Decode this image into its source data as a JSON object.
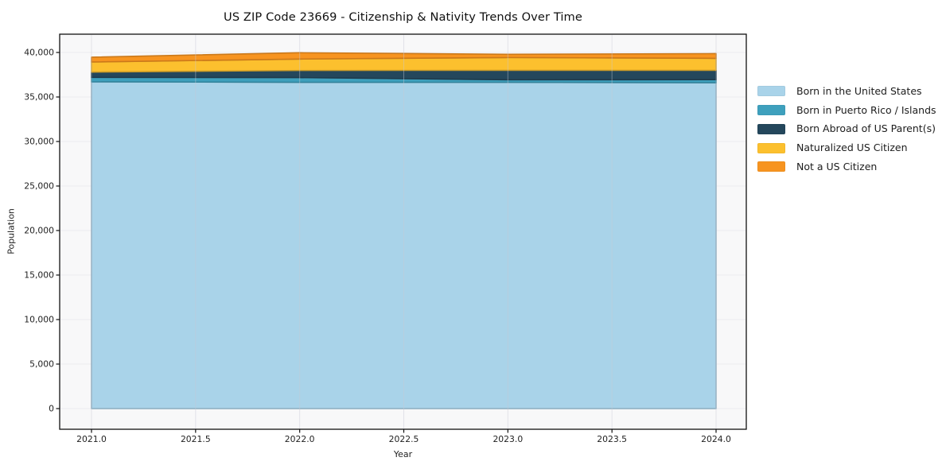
{
  "chart_data": {
    "type": "area",
    "stacked": true,
    "title": "US ZIP Code 23669 - Citizenship & Nativity Trends Over Time",
    "xlabel": "Year",
    "ylabel": "Population",
    "x": [
      2021,
      2022,
      2023,
      2024
    ],
    "series": [
      {
        "name": "Born in the United States",
        "color": "#a9d3e9",
        "values": [
          36700,
          36650,
          36650,
          36600
        ]
      },
      {
        "name": "Born in Puerto Rico / Islands",
        "color": "#3ea0bd",
        "values": [
          500,
          530,
          280,
          350
        ]
      },
      {
        "name": "Born Abroad of US Parent(s)",
        "color": "#24475c",
        "values": [
          600,
          800,
          1070,
          1050
        ]
      },
      {
        "name": "Naturalized US Citizen",
        "color": "#fcc02e",
        "values": [
          1130,
          1280,
          1430,
          1340
        ]
      },
      {
        "name": "Not a US Citizen",
        "color": "#f79420",
        "values": [
          540,
          710,
          360,
          530
        ]
      }
    ],
    "xticks": [
      {
        "value": 2021.0,
        "label": "2021.0"
      },
      {
        "value": 2021.5,
        "label": "2021.5"
      },
      {
        "value": 2022.0,
        "label": "2022.0"
      },
      {
        "value": 2022.5,
        "label": "2022.5"
      },
      {
        "value": 2023.0,
        "label": "2023.0"
      },
      {
        "value": 2023.5,
        "label": "2023.5"
      },
      {
        "value": 2024.0,
        "label": "2024.0"
      }
    ],
    "yticks": [
      {
        "value": 0,
        "label": "0"
      },
      {
        "value": 5000,
        "label": "5,000"
      },
      {
        "value": 10000,
        "label": "10,000"
      },
      {
        "value": 15000,
        "label": "15,000"
      },
      {
        "value": 20000,
        "label": "20,000"
      },
      {
        "value": 25000,
        "label": "25,000"
      },
      {
        "value": 30000,
        "label": "30,000"
      },
      {
        "value": 35000,
        "label": "35,000"
      },
      {
        "value": 40000,
        "label": "40,000"
      }
    ],
    "xlim": [
      2020.85,
      2024.15
    ],
    "ylim": [
      -2320,
      42055
    ],
    "grid": true,
    "legend_position": "right-outside",
    "plot_background": "#f8f8f9",
    "grid_color": "#ebebf0",
    "spine_color": "#111111"
  }
}
